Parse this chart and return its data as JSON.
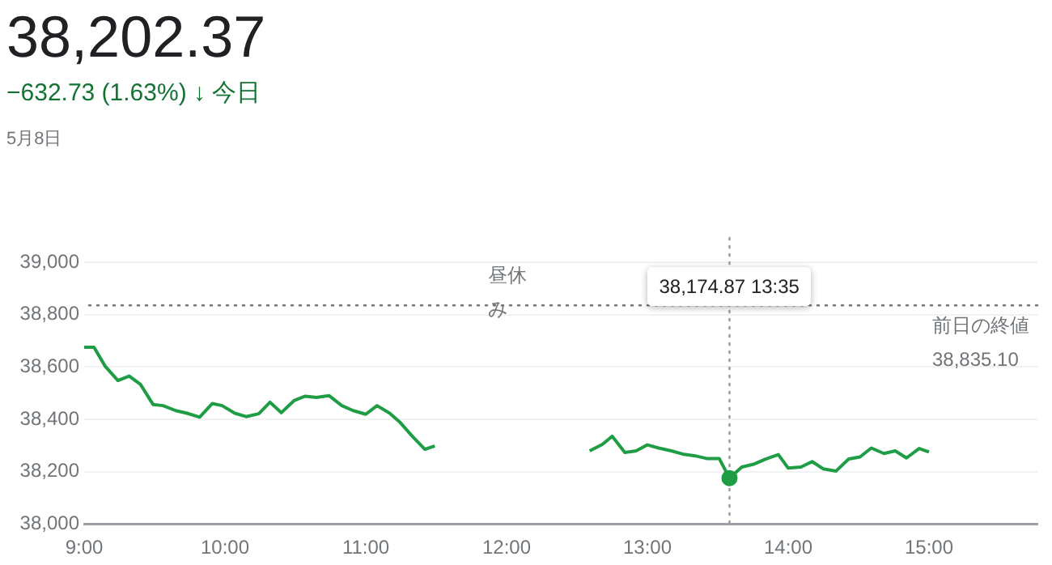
{
  "chart_data": {
    "type": "line",
    "title": "38,202.37",
    "subtitle": "−632.73 (1.63%) ↓ 今日",
    "annotations": [
      "5月8日",
      "昼休み",
      "38,174.87 13:35"
    ],
    "series": [
      {
        "color": "#1f9d45",
        "marker": "none",
        "x": [
          9.0,
          9.07,
          9.15,
          9.24,
          9.32,
          9.4,
          9.49,
          9.56,
          9.65,
          9.73,
          9.82,
          9.91,
          9.98,
          10.07,
          10.15,
          10.24,
          10.32,
          10.4,
          10.49,
          10.57,
          10.65,
          10.74,
          10.83,
          10.91,
          11.0,
          11.08,
          11.17,
          11.24,
          11.33,
          11.42,
          11.49,
          12.0,
          12.59,
          12.68,
          12.75,
          12.84,
          12.92,
          13.0,
          13.08,
          13.17,
          13.25,
          13.34,
          13.42,
          13.51,
          13.583,
          13.67,
          13.76,
          13.84,
          13.93,
          14.0,
          14.09,
          14.17,
          14.25,
          14.34,
          14.43,
          14.51,
          14.59,
          14.68,
          14.76,
          14.84,
          14.93,
          15.0
        ],
        "values": [
          38675,
          38675,
          38602,
          38548,
          38565,
          38533,
          38456,
          38452,
          38433,
          38423,
          38408,
          38460,
          38452,
          38423,
          38410,
          38421,
          38465,
          38425,
          38471,
          38488,
          38483,
          38490,
          38452,
          38433,
          38419,
          38452,
          38423,
          38390,
          38335,
          38285,
          38298,
          null,
          38279,
          38304,
          38335,
          38273,
          38279,
          38302,
          38290,
          38279,
          38267,
          38260,
          38250,
          38250,
          38174.87,
          38217,
          38229,
          38248,
          38265,
          38213,
          38217,
          38238,
          38210,
          38202,
          38248,
          38256,
          38290,
          38269,
          38279,
          38252,
          38288,
          38275
        ]
      },
      {
        "type": "scatter",
        "color": "#1f9d45",
        "marker": "circle",
        "x": [
          13.583
        ],
        "values": [
          38174.87
        ]
      }
    ],
    "xlim": [
      9,
      15.77
    ],
    "xticks": [
      {
        "value": 9,
        "label": "9:00"
      },
      {
        "value": 10,
        "label": "10:00"
      },
      {
        "value": 11,
        "label": "11:00"
      },
      {
        "value": 12,
        "label": "12:00"
      },
      {
        "value": 13,
        "label": "13:00"
      },
      {
        "value": 14,
        "label": "14:00"
      },
      {
        "value": 15,
        "label": "15:00"
      }
    ],
    "ylim": [
      38000,
      39000
    ],
    "yticks": [
      {
        "value": 38000,
        "label": "38,000"
      },
      {
        "value": 38200,
        "label": "38,200"
      },
      {
        "value": 38400,
        "label": "38,400"
      },
      {
        "value": 38600,
        "label": "38,600"
      },
      {
        "value": 38800,
        "label": "38,800"
      },
      {
        "value": 39000,
        "label": "39,000"
      }
    ],
    "ref_lines": [
      {
        "axis": "y",
        "value": 38835.1,
        "label": "前日の終値 38,835.10",
        "line_style": "dotted",
        "color": "#757575"
      },
      {
        "axis": "x",
        "value": 13.583,
        "line_style": "dotted",
        "color": "#9e9e9e"
      }
    ],
    "grid": "y",
    "legend": false
  }
}
